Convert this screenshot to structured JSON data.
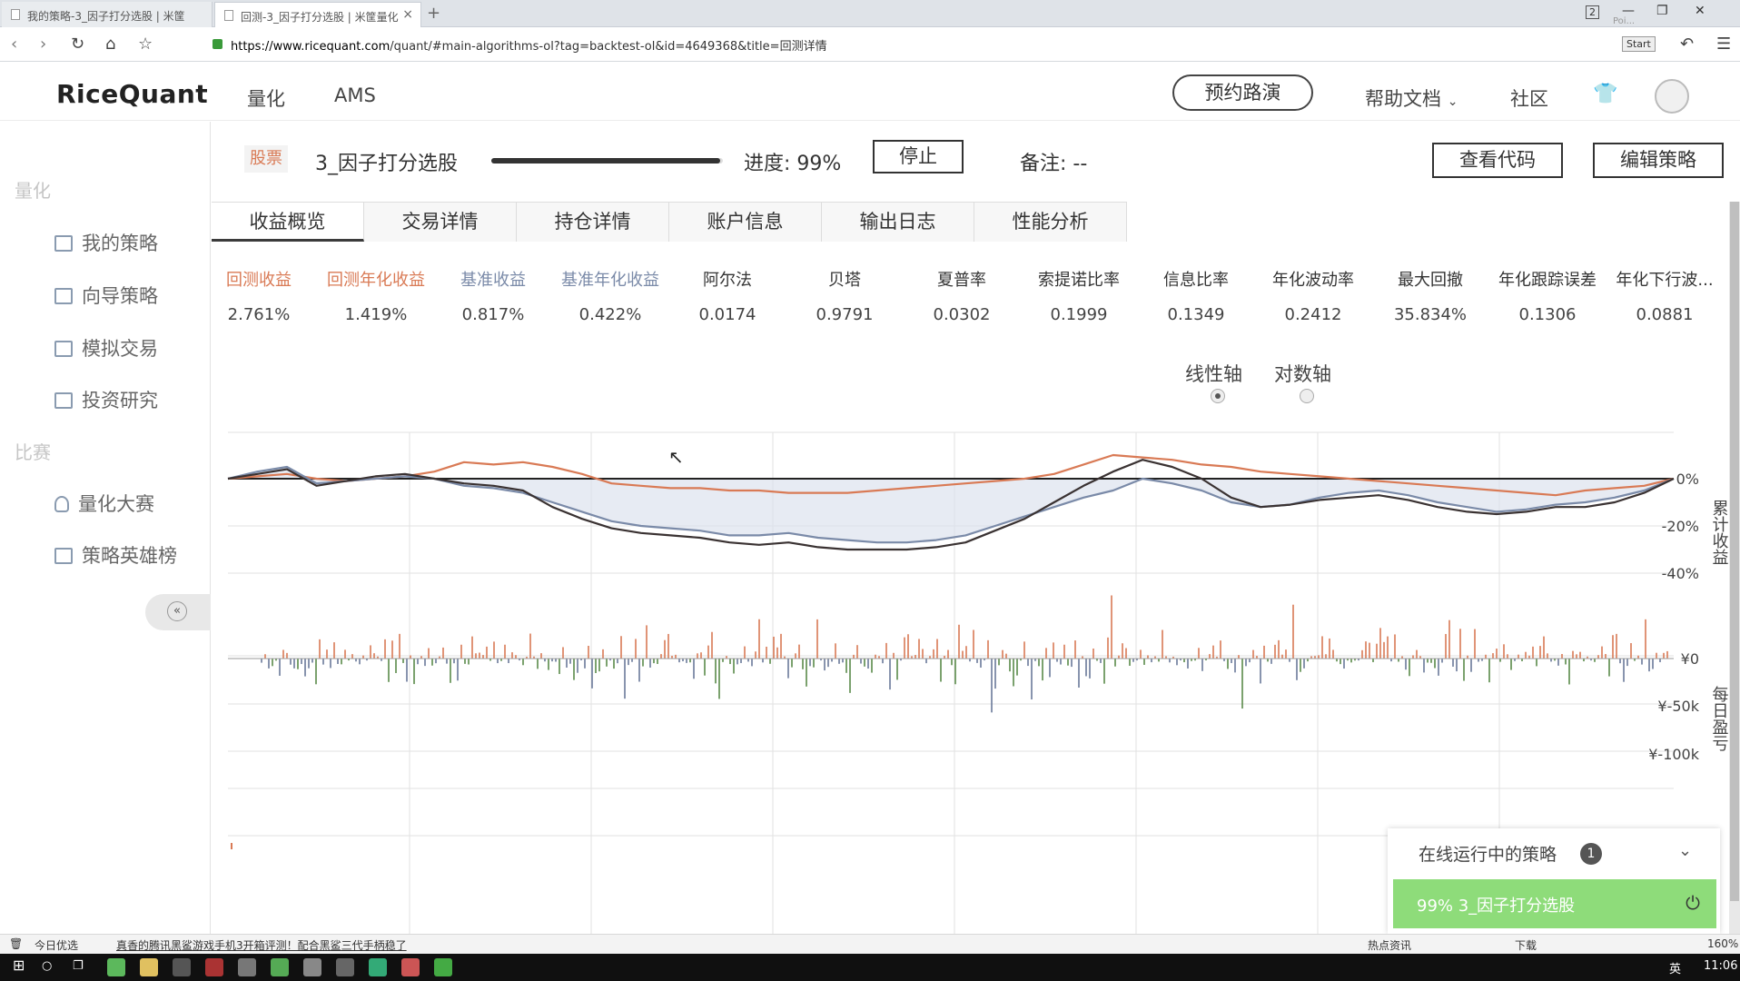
{
  "browser": {
    "tabs": [
      {
        "title": "我的策略-3_因子打分选股 | 米筐"
      },
      {
        "title": "回测-3_因子打分选股 | 米筐量化"
      }
    ],
    "url_host": "https://www.ricequant.com",
    "url_path": "/quant/#main-algorithms-ol?tag=backtest-ol&id=4649368&title=回测详情",
    "tab_count": "2",
    "extras": {
      "poi": "Poi...",
      "start": "Start"
    }
  },
  "site": {
    "logo": "RiceQuant",
    "nav": [
      "量化",
      "AMS"
    ],
    "demo_button": "预约路演",
    "help": "帮助文档",
    "community": "社区"
  },
  "sidebar": {
    "sections": [
      {
        "title": "量化",
        "items": [
          "我的策略",
          "向导策略",
          "模拟交易",
          "投资研究"
        ]
      },
      {
        "title": "比赛",
        "items": [
          "量化大赛",
          "策略英雄榜"
        ]
      }
    ],
    "collapse_symbol": "«"
  },
  "header": {
    "tag": "股票",
    "strategy_name": "3_因子打分选股",
    "progress_label": "进度: 99%",
    "progress_fraction": 0.99,
    "stop_button": "停止",
    "remark": "备注: --",
    "view_code": "查看代码",
    "edit_strategy": "编辑策略"
  },
  "tabs": [
    "收益概览",
    "交易详情",
    "持仓详情",
    "账户信息",
    "输出日志",
    "性能分析"
  ],
  "metrics": [
    {
      "label": "回测收益",
      "value": "2.761%",
      "color": "#d97a55"
    },
    {
      "label": "回测年化收益",
      "value": "1.419%",
      "color": "#d97a55"
    },
    {
      "label": "基准收益",
      "value": "0.817%",
      "color": "#7a8aa8"
    },
    {
      "label": "基准年化收益",
      "value": "0.422%",
      "color": "#7a8aa8"
    },
    {
      "label": "阿尔法",
      "value": "0.0174",
      "color": "#333333"
    },
    {
      "label": "贝塔",
      "value": "0.9791",
      "color": "#333333"
    },
    {
      "label": "夏普率",
      "value": "0.0302",
      "color": "#333333"
    },
    {
      "label": "索提诺比率",
      "value": "0.1999",
      "color": "#333333"
    },
    {
      "label": "信息比率",
      "value": "0.1349",
      "color": "#333333"
    },
    {
      "label": "年化波动率",
      "value": "0.2412",
      "color": "#333333"
    },
    {
      "label": "最大回撤",
      "value": "35.834%",
      "color": "#333333"
    },
    {
      "label": "年化跟踪误差",
      "value": "0.1306",
      "color": "#333333"
    },
    {
      "label": "年化下行波...",
      "value": "0.0881",
      "color": "#333333"
    }
  ],
  "axis_toggle": {
    "linear": "线性轴",
    "log": "对数轴",
    "selected": "linear"
  },
  "chart_data": [
    {
      "type": "line",
      "ylabel": "累计收益",
      "yticks": [
        "0%",
        "-20%",
        "-40%"
      ],
      "ylim": [
        -40,
        5
      ],
      "grid": true,
      "series": [
        {
          "color": "#d97a55",
          "values": [
            0,
            1,
            2,
            0,
            -1,
            0,
            1,
            3,
            7,
            6,
            7,
            5,
            2,
            -2,
            -3,
            -4,
            -4,
            -5,
            -5,
            -6,
            -6,
            -6,
            -5,
            -4,
            -3,
            -2,
            -1,
            0,
            2,
            6,
            10,
            9,
            8,
            6,
            5,
            3,
            2,
            1,
            0,
            -1,
            -2,
            -3,
            -4,
            -5,
            -6,
            -7,
            -5,
            -4,
            -3,
            0
          ]
        },
        {
          "color": "#7a8aa8",
          "values": [
            0,
            3,
            5,
            -2,
            -1,
            0,
            1,
            0,
            -3,
            -4,
            -6,
            -10,
            -14,
            -18,
            -20,
            -21,
            -22,
            -24,
            -24,
            -23,
            -25,
            -26,
            -27,
            -27,
            -26,
            -24,
            -20,
            -16,
            -12,
            -8,
            -5,
            0,
            -2,
            -5,
            -10,
            -12,
            -11,
            -8,
            -6,
            -5,
            -7,
            -10,
            -12,
            -14,
            -13,
            -11,
            -10,
            -8,
            -5,
            0
          ]
        },
        {
          "color": "#3a3232",
          "values": [
            0,
            2,
            4,
            -3,
            -1,
            1,
            2,
            0,
            -2,
            -3,
            -5,
            -12,
            -17,
            -21,
            -23,
            -24,
            -25,
            -27,
            -28,
            -27,
            -29,
            -30,
            -30,
            -30,
            -29,
            -27,
            -22,
            -17,
            -10,
            -3,
            3,
            8,
            5,
            0,
            -8,
            -12,
            -11,
            -9,
            -8,
            -7,
            -9,
            -12,
            -14,
            -15,
            -14,
            -12,
            -12,
            -10,
            -6,
            0
          ]
        }
      ]
    },
    {
      "type": "bar",
      "ylabel": "每日盈亏",
      "yticks": [
        "¥0",
        "¥-50k",
        "¥-100k"
      ],
      "ylim": [
        -100,
        20
      ],
      "grid": true
    }
  ],
  "running_panel": {
    "title": "在线运行中的策略",
    "count": "1",
    "item": "99% 3_因子打分选股"
  },
  "statusbar": {
    "left": "今日优选",
    "news": "真香的腾讯黑鲨游戏手机3开箱评测！配合黑鲨三代手柄稳了",
    "hot": "热点资讯",
    "download": "下载",
    "zoom": "160%"
  },
  "taskbar": {
    "ime": "英",
    "time": "11:06"
  }
}
